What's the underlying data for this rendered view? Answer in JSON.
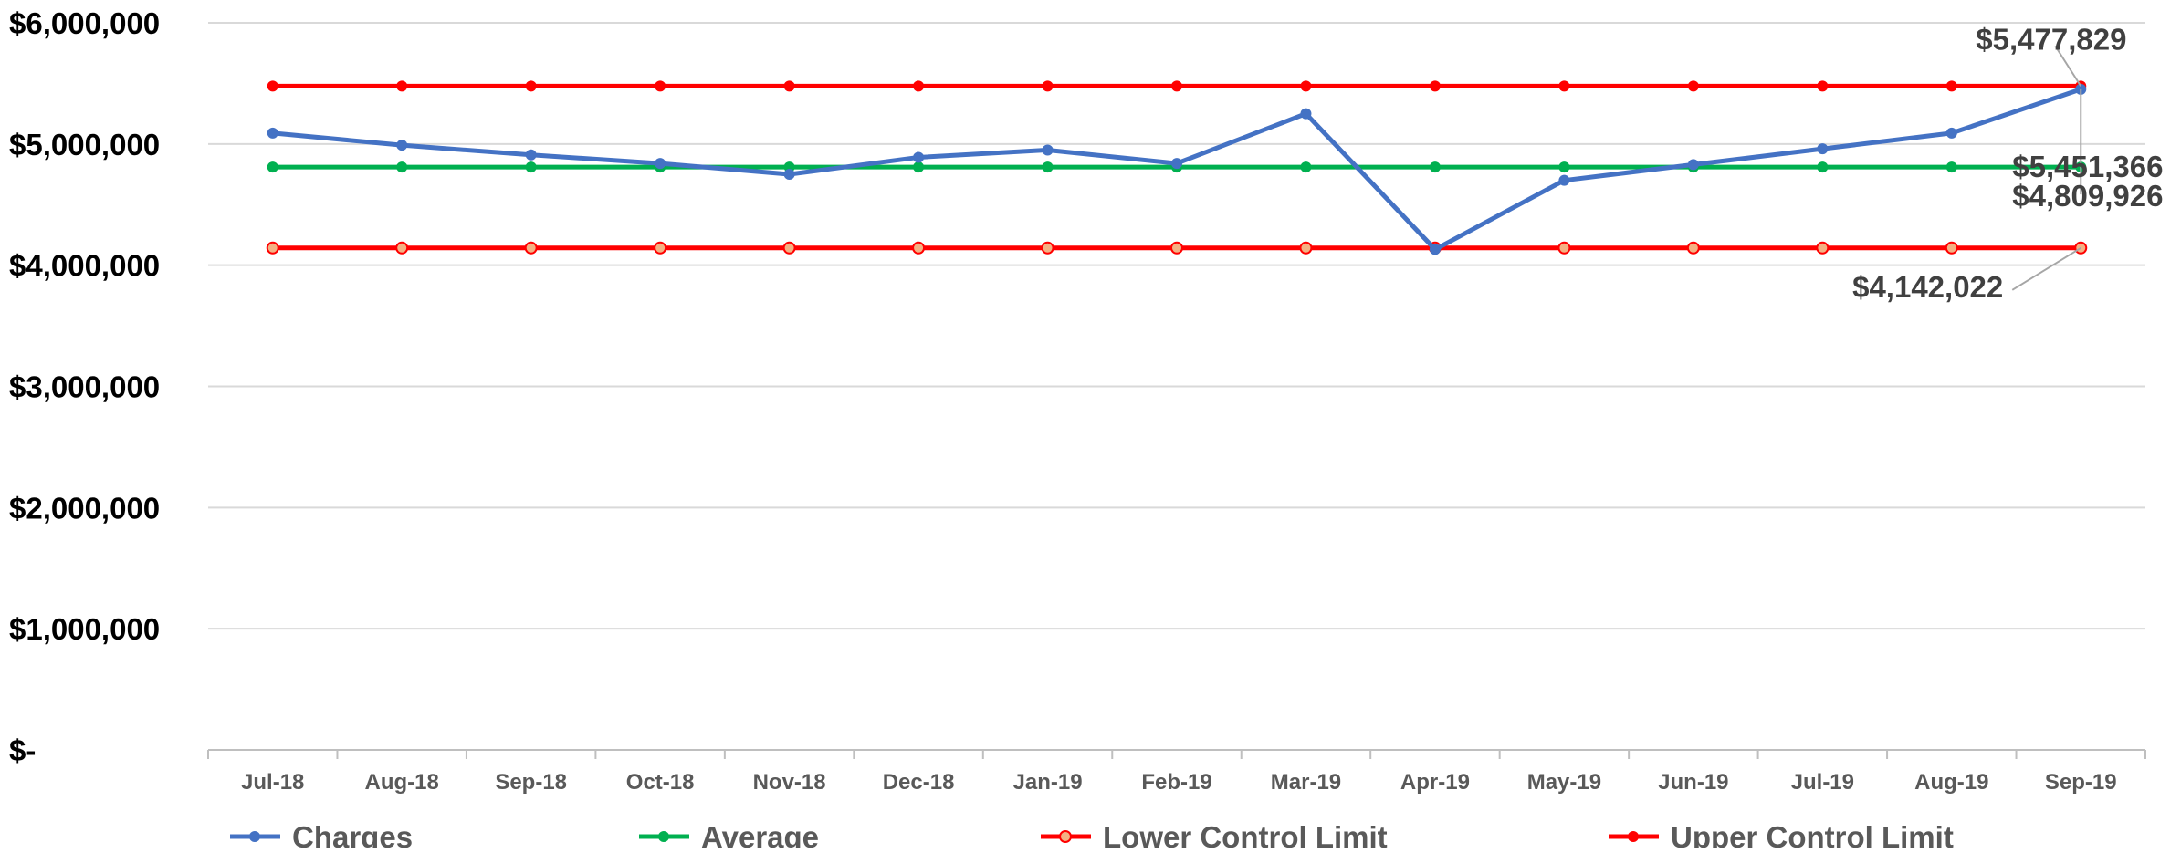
{
  "chart_data": {
    "type": "line",
    "categories": [
      "Jul-18",
      "Aug-18",
      "Sep-18",
      "Oct-18",
      "Nov-18",
      "Dec-18",
      "Jan-19",
      "Feb-19",
      "Mar-19",
      "Apr-19",
      "May-19",
      "Jun-19",
      "Jul-19",
      "Aug-19",
      "Sep-19"
    ],
    "ylim": [
      0,
      6000000
    ],
    "y_ticks": [
      {
        "value": 0,
        "label": "$-"
      },
      {
        "value": 1000000,
        "label": "$1,000,000"
      },
      {
        "value": 2000000,
        "label": "$2,000,000"
      },
      {
        "value": 3000000,
        "label": "$3,000,000"
      },
      {
        "value": 4000000,
        "label": "$4,000,000"
      },
      {
        "value": 5000000,
        "label": "$5,000,000"
      },
      {
        "value": 6000000,
        "label": "$6,000,000"
      }
    ],
    "grid": true,
    "legend_position": "bottom",
    "series": [
      {
        "name": "Charges",
        "color": "#4472C4",
        "values": [
          5090000,
          4990000,
          4910000,
          4840000,
          4750000,
          4890000,
          4950000,
          4840000,
          5250000,
          4130000,
          4700000,
          4830000,
          4960000,
          5090000,
          5451366
        ]
      },
      {
        "name": "Average",
        "color": "#00B050",
        "values": [
          4809926,
          4809926,
          4809926,
          4809926,
          4809926,
          4809926,
          4809926,
          4809926,
          4809926,
          4809926,
          4809926,
          4809926,
          4809926,
          4809926,
          4809926
        ]
      },
      {
        "name": "Lower Control Limit",
        "color": "#FF0000",
        "marker_fill": "#F4B183",
        "values": [
          4142022,
          4142022,
          4142022,
          4142022,
          4142022,
          4142022,
          4142022,
          4142022,
          4142022,
          4142022,
          4142022,
          4142022,
          4142022,
          4142022,
          4142022
        ]
      },
      {
        "name": "Upper Control Limit",
        "color": "#FF0000",
        "values": [
          5477829,
          5477829,
          5477829,
          5477829,
          5477829,
          5477829,
          5477829,
          5477829,
          5477829,
          5477829,
          5477829,
          5477829,
          5477829,
          5477829,
          5477829
        ]
      }
    ],
    "annotations": [
      {
        "text": "$5,477,829",
        "series": "Upper Control Limit",
        "point": 14
      },
      {
        "text": "$4,809,926",
        "series": "Average",
        "point": 14
      },
      {
        "text": "$5,451,366",
        "series": "Charges",
        "point": 14
      },
      {
        "text": "$4,142,022",
        "series": "Lower Control Limit",
        "point": 14
      }
    ]
  }
}
